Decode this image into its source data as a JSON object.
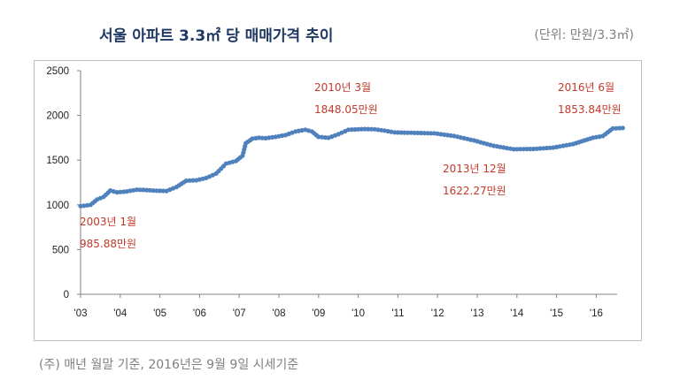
{
  "header": {
    "title": "서울 아파트 3.3㎡ 당 매매가격 추이",
    "unit": "(단위: 만원/3.3㎡)"
  },
  "footnote": "(주) 매년 월말 기준, 2016년은 9월 9일 시세기준",
  "chart_data": {
    "type": "line",
    "title": "서울 아파트 3.3㎡ 당 매매가격 추이",
    "ylim": [
      0,
      2500
    ],
    "yticks": [
      "0",
      "500",
      "1000",
      "1500",
      "2000",
      "2500"
    ],
    "xticks": [
      "'03",
      "'04",
      "'05",
      "'06",
      "'07",
      "'08",
      "'09",
      "'10",
      "'11",
      "'12",
      "'13",
      "'14",
      "'15",
      "'16"
    ],
    "xlim": [
      "2003-01",
      "2016-09"
    ],
    "grid": false,
    "line_color": "#4f81bd",
    "annotation_color": "#c0392b",
    "series": [
      {
        "points": [
          [
            "2003-01",
            985.88
          ],
          [
            "2003-02",
            990
          ],
          [
            "2003-04",
            1000
          ],
          [
            "2003-06",
            1060
          ],
          [
            "2003-08",
            1090
          ],
          [
            "2003-10",
            1160
          ],
          [
            "2003-12",
            1140
          ],
          [
            "2004-03",
            1150
          ],
          [
            "2004-06",
            1170
          ],
          [
            "2004-09",
            1165
          ],
          [
            "2004-12",
            1158
          ],
          [
            "2005-03",
            1155
          ],
          [
            "2005-06",
            1200
          ],
          [
            "2005-09",
            1270
          ],
          [
            "2005-12",
            1275
          ],
          [
            "2006-03",
            1300
          ],
          [
            "2006-06",
            1350
          ],
          [
            "2006-09",
            1460
          ],
          [
            "2006-12",
            1490
          ],
          [
            "2007-02",
            1550
          ],
          [
            "2007-03",
            1690
          ],
          [
            "2007-05",
            1740
          ],
          [
            "2007-07",
            1750
          ],
          [
            "2007-09",
            1745
          ],
          [
            "2007-12",
            1760
          ],
          [
            "2008-03",
            1780
          ],
          [
            "2008-06",
            1820
          ],
          [
            "2008-09",
            1840
          ],
          [
            "2008-11",
            1820
          ],
          [
            "2009-01",
            1760
          ],
          [
            "2009-04",
            1750
          ],
          [
            "2009-07",
            1790
          ],
          [
            "2009-10",
            1840
          ],
          [
            "2010-03",
            1848.05
          ],
          [
            "2010-06",
            1845
          ],
          [
            "2010-09",
            1830
          ],
          [
            "2010-12",
            1810
          ],
          [
            "2011-06",
            1805
          ],
          [
            "2011-12",
            1800
          ],
          [
            "2012-06",
            1770
          ],
          [
            "2012-12",
            1720
          ],
          [
            "2013-06",
            1660
          ],
          [
            "2013-12",
            1622.27
          ],
          [
            "2014-06",
            1625
          ],
          [
            "2014-12",
            1640
          ],
          [
            "2015-06",
            1680
          ],
          [
            "2015-12",
            1750
          ],
          [
            "2016-03",
            1770
          ],
          [
            "2016-06",
            1853.84
          ],
          [
            "2016-09",
            1860
          ]
        ]
      }
    ],
    "annotations": [
      {
        "id": "a2003",
        "line1": "2003년 1월",
        "line2": "985.88만원"
      },
      {
        "id": "a2010",
        "line1": "2010년 3월",
        "line2": "1848.05만원"
      },
      {
        "id": "a2013",
        "line1": "2013년 12월",
        "line2": "1622.27만원"
      },
      {
        "id": "a2016",
        "line1": "2016년 6월",
        "line2": "1853.84만원"
      }
    ]
  }
}
